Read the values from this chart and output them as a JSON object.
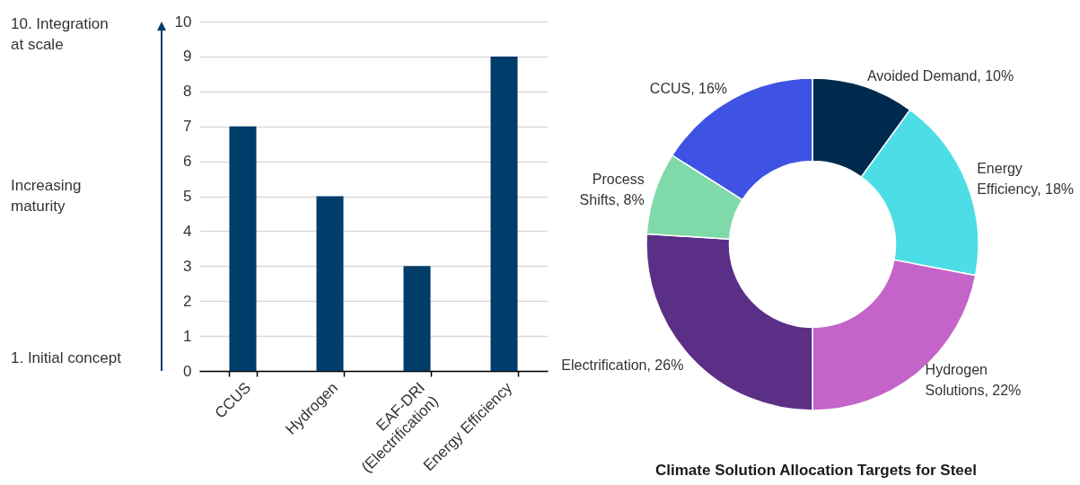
{
  "chart_data": [
    {
      "type": "bar",
      "categories": [
        "CCUS",
        "Hydrogen",
        "EAF-DRI (Electrification)",
        "Energy Efficiency"
      ],
      "values": [
        7,
        5,
        3,
        9
      ],
      "color": "#003d6b",
      "ylim": [
        0,
        10
      ],
      "yticks": [
        0,
        1,
        2,
        3,
        4,
        5,
        6,
        7,
        8,
        9,
        10
      ],
      "grid": "y",
      "annotations": [
        "10. Integration at scale",
        "Increasing maturity",
        "1. Initial concept"
      ]
    },
    {
      "type": "donut",
      "title": "Climate Solution Allocation Targets for Steel",
      "categories": [
        "Avoided Demand",
        "Energy Efficiency",
        "Hydrogen Solutions",
        "Electrification",
        "Process Shifts",
        "CCUS"
      ],
      "values": [
        10,
        18,
        22,
        26,
        8,
        16
      ],
      "colors": [
        "#002a4d",
        "#4ddde6",
        "#c463c8",
        "#5b2f86",
        "#80d9a8",
        "#3e53e3"
      ],
      "value_labels": [
        "10%",
        "18%",
        "22%",
        "26%",
        "8%",
        "16%"
      ]
    }
  ]
}
